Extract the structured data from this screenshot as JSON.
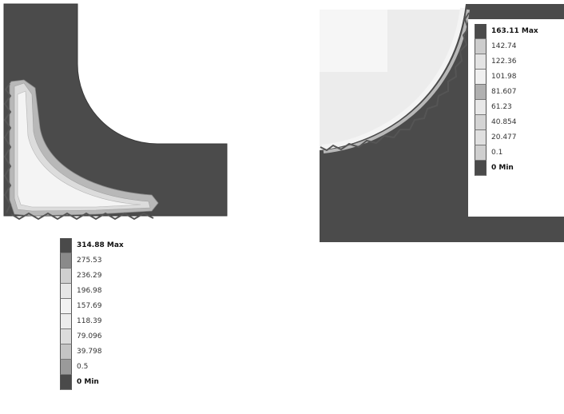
{
  "figures": {
    "left": {
      "legend": {
        "entries": [
          {
            "label": "314.88 Max",
            "color": "#4a4a4a"
          },
          {
            "label": "275.53",
            "color": "#8a8a8a"
          },
          {
            "label": "236.29",
            "color": "#cfcfcf"
          },
          {
            "label": "196.98",
            "color": "#e6e6e6"
          },
          {
            "label": "157.69",
            "color": "#f2f2f2"
          },
          {
            "label": "118.39",
            "color": "#ececec"
          },
          {
            "label": "79.096",
            "color": "#dcdcdc"
          },
          {
            "label": "39.798",
            "color": "#c4c4c4"
          },
          {
            "label": "0.5",
            "color": "#9a9a9a"
          },
          {
            "label": "0 Min",
            "color": "#4a4a4a"
          }
        ]
      }
    },
    "right": {
      "legend": {
        "entries": [
          {
            "label": "163.11 Max",
            "color": "#4a4a4a"
          },
          {
            "label": "142.74",
            "color": "#cdcdcd"
          },
          {
            "label": "122.36",
            "color": "#e4e4e4"
          },
          {
            "label": "101.98",
            "color": "#f0f0f0"
          },
          {
            "label": "81.607",
            "color": "#b0b0b0"
          },
          {
            "label": "61.23",
            "color": "#e8e8e8"
          },
          {
            "label": "40.854",
            "color": "#d4d4d4"
          },
          {
            "label": "20.477",
            "color": "#e0e0e0"
          },
          {
            "label": "0.1",
            "color": "#cfcfcf"
          },
          {
            "label": "0 Min",
            "color": "#4a4a4a"
          }
        ]
      }
    }
  },
  "colors": {
    "body_dark": "#4b4b4b",
    "body_light": "#ececec",
    "band_mid": "#b8b8b8",
    "band_light": "#dcdcdc",
    "band_highlight": "#f4f4f4",
    "mesh_edge": "#555555"
  }
}
